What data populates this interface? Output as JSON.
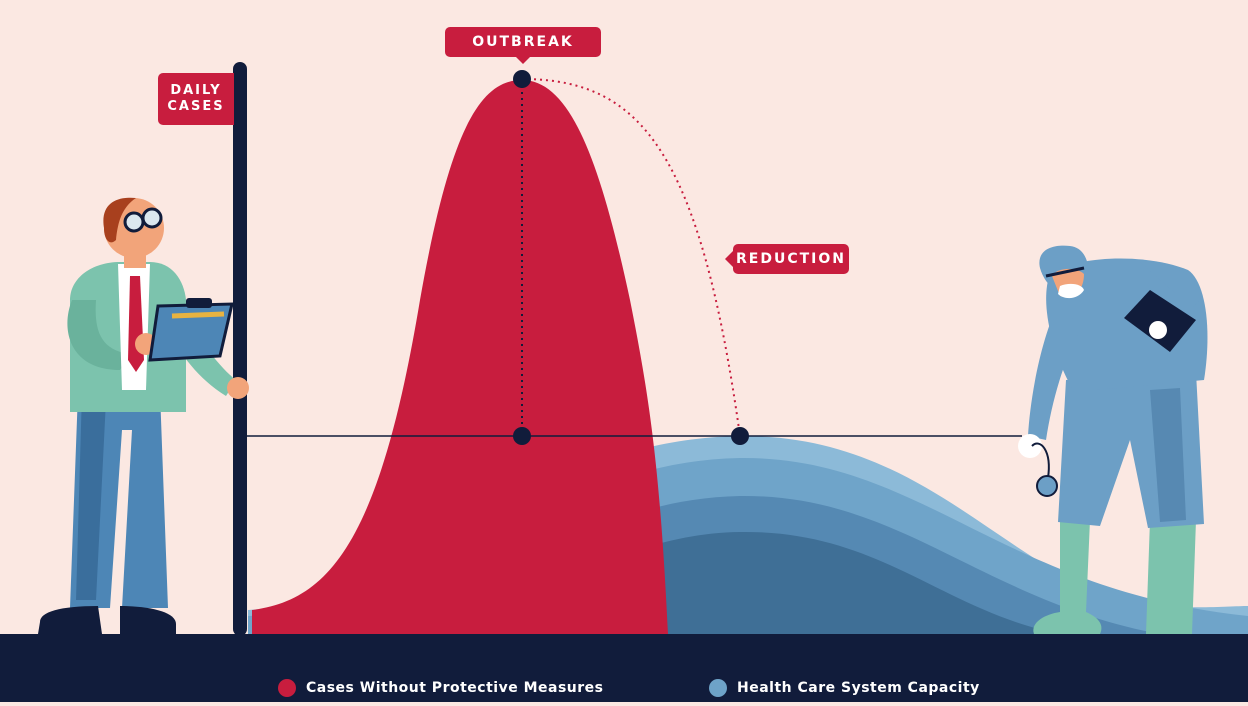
{
  "labels": {
    "outbreak": "OUTBREAK",
    "reduction": "REDUCTION",
    "daily_line1": "DAILY",
    "daily_line2": "CASES"
  },
  "legend": {
    "red_label": "Cases Without Protective Measures",
    "blue_label": "Health Care System Capacity"
  },
  "colors": {
    "background": "#fbe8e2",
    "red": "#c81d3e",
    "navy": "#111c3b",
    "blue": "#6ea3c8",
    "blue_dark": "#3f6f96",
    "suit": "#6c9fc6",
    "jacket": "#7cc3ad"
  },
  "icons": [
    "clipboard-icon",
    "glasses-icon",
    "stethoscope-icon"
  ]
}
